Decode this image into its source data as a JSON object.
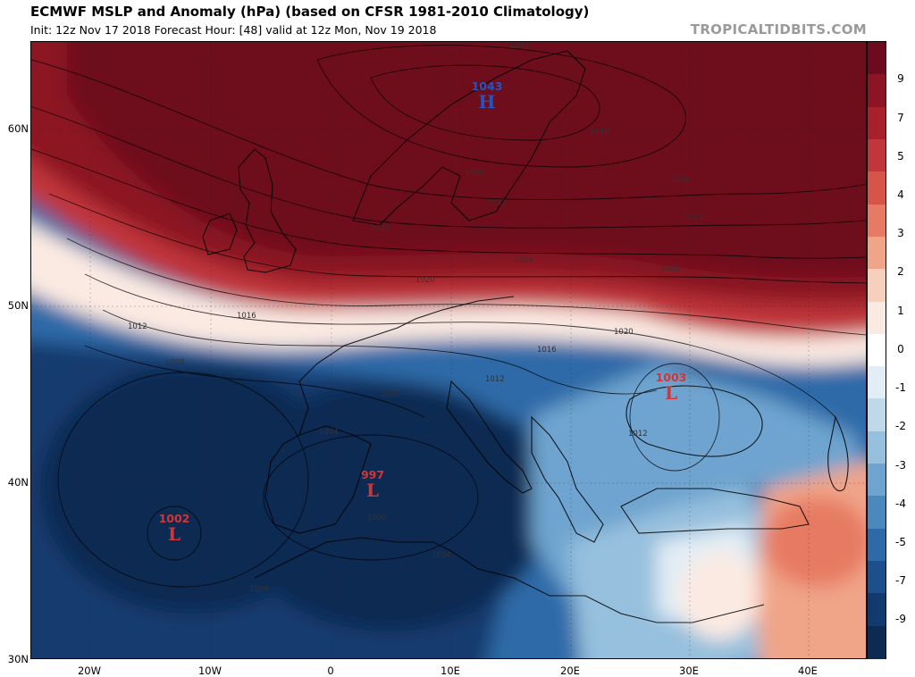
{
  "header": {
    "title": "ECMWF MSLP and Anomaly (hPa) (based on CFSR 1981-2010 Climatology)",
    "subtitle": "Init: 12z Nov 17 2018   Forecast Hour: [48]   valid at 12z Mon, Nov 19 2018",
    "brand": "TROPICALTIDBITS.COM"
  },
  "axes": {
    "lat_labels": [
      "60N",
      "50N",
      "40N",
      "30N"
    ],
    "lon_labels": [
      "20W",
      "10W",
      "0",
      "10E",
      "20E",
      "30E",
      "40E"
    ]
  },
  "colorbar": {
    "labels": [
      "9",
      "7",
      "5",
      "4",
      "3",
      "2",
      "1",
      "0",
      "-1",
      "-2",
      "-3",
      "-4",
      "-5",
      "-7",
      "-9"
    ],
    "colors": [
      "#6e0a1e",
      "#8c1424",
      "#a8202c",
      "#c0363a",
      "#d65448",
      "#e67a62",
      "#f0a488",
      "#f8cfbc",
      "#fbeae2",
      "#ffffff",
      "#e2edf5",
      "#bfd8ea",
      "#96c0dd",
      "#6ea4cf",
      "#4a88be",
      "#2e6aa8",
      "#1d4f8c",
      "#123a6e",
      "#0c2a52"
    ]
  },
  "centers": [
    {
      "value": "1043",
      "letter": "H",
      "color": "#2255c4"
    },
    {
      "value": "1003",
      "letter": "L",
      "color": "#d63434"
    },
    {
      "value": "997",
      "letter": "L",
      "color": "#d63434"
    },
    {
      "value": "1002",
      "letter": "L",
      "color": "#d63434"
    }
  ],
  "contours": [
    "1040",
    "1040",
    "1036",
    "1036",
    "1032",
    "1032",
    "1028",
    "1028",
    "1024",
    "1020",
    "1020",
    "1016",
    "1016",
    "1012",
    "1012",
    "1008",
    "1008",
    "1004",
    "1000",
    "1004",
    "1008",
    "1012"
  ]
}
